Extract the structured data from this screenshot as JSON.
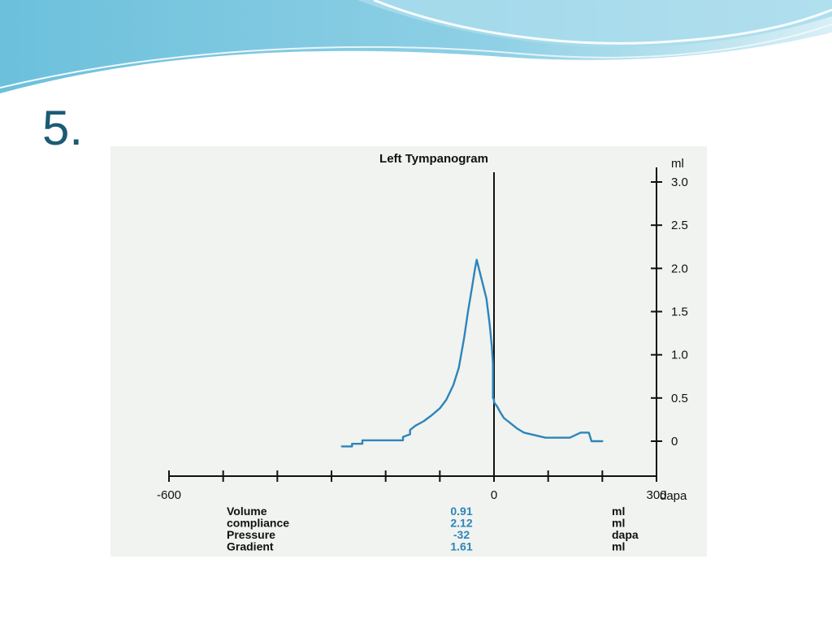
{
  "slide": {
    "number_label": "5."
  },
  "colors": {
    "title_text": "#1b5a74",
    "curve": "#2e84bb",
    "values_text": "#2e84bb",
    "panel_bg": "#f0f3ef",
    "banner_dark": "#5fb7d6",
    "banner_light": "#bfe3ef"
  },
  "chart_data": {
    "type": "line",
    "title": "Left Tympanogram",
    "xlabel": "dapa",
    "ylabel": "ml",
    "xlim": [
      -600,
      300
    ],
    "ylim": [
      0,
      3.0
    ],
    "x_tick_labels": [
      {
        "value": -600,
        "label": "-600"
      },
      {
        "value": 0,
        "label": "0"
      },
      {
        "value": 300,
        "label": "300"
      }
    ],
    "y_ticks": [
      {
        "value": 0,
        "label": "0"
      },
      {
        "value": 0.5,
        "label": "0.5"
      },
      {
        "value": 1.0,
        "label": "1.0"
      },
      {
        "value": 1.5,
        "label": "1.5"
      },
      {
        "value": 2.0,
        "label": "2.0"
      },
      {
        "value": 2.5,
        "label": "2.5"
      },
      {
        "value": 3.0,
        "label": "3.0"
      }
    ],
    "grid": false,
    "series": [
      {
        "x": [
          -281,
          -262,
          -262,
          -243,
          -243,
          -168,
          -168,
          -155,
          -155,
          -145,
          -130,
          -115,
          -100,
          -88,
          -75,
          -65,
          -55,
          -48,
          -40,
          -35,
          -32,
          -26,
          -20,
          -14,
          -8,
          -4,
          -2,
          -2,
          0,
          0,
          6,
          12,
          18,
          24,
          32,
          42,
          55,
          75,
          95,
          110,
          140,
          160,
          175,
          180,
          185,
          200
        ],
        "y": [
          -0.06,
          -0.06,
          -0.03,
          -0.03,
          0.01,
          0.01,
          0.05,
          0.08,
          0.13,
          0.18,
          0.23,
          0.3,
          0.38,
          0.48,
          0.65,
          0.85,
          1.2,
          1.5,
          1.8,
          2.0,
          2.1,
          1.95,
          1.8,
          1.65,
          1.35,
          1.1,
          0.9,
          0.5,
          0.48,
          0.45,
          0.4,
          0.33,
          0.27,
          0.24,
          0.2,
          0.15,
          0.1,
          0.07,
          0.04,
          0.04,
          0.04,
          0.1,
          0.1,
          0.0,
          0.0,
          0.0
        ]
      }
    ],
    "results_table": [
      {
        "label": "Volume",
        "value": "0.91",
        "unit": "ml"
      },
      {
        "label": "compliance",
        "value": "2.12",
        "unit": "ml"
      },
      {
        "label": "Pressure",
        "value": "-32",
        "unit": "dapa"
      },
      {
        "label": "Gradient",
        "value": "1.61",
        "unit": "ml"
      }
    ]
  }
}
